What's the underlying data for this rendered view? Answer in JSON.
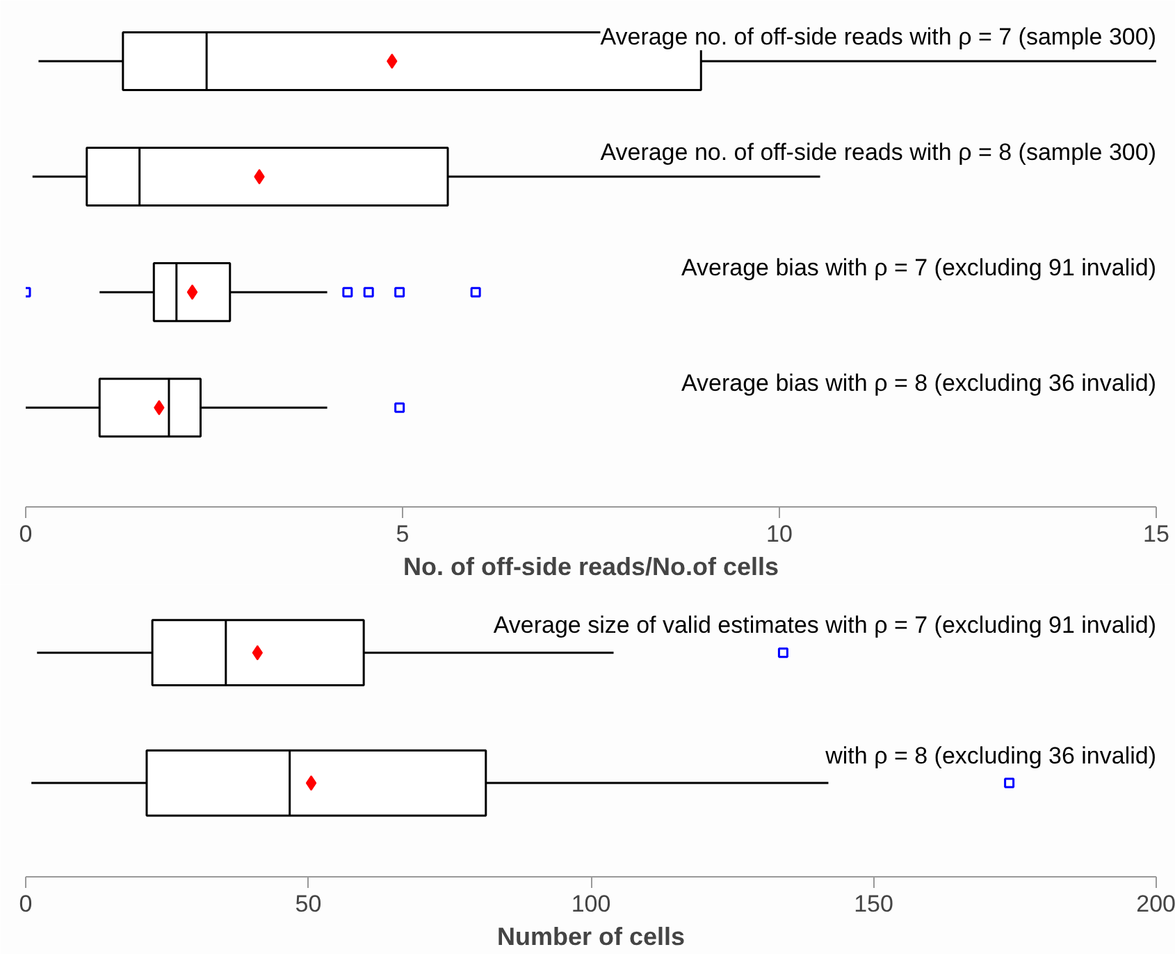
{
  "chart_data": [
    {
      "type": "box",
      "orientation": "horizontal",
      "categories": [
        "Average no. of off-side reads with ρ = 7 (sample 300)",
        "Average no. of off-side reads with ρ = 8 (sample 300)",
        "Average bias with ρ = 7 (excluding 91 invalid)",
        "Average bias with ρ = 8 (excluding 36 invalid)"
      ],
      "boxes": [
        {
          "low": 0.17,
          "q1": 1.29,
          "median": 2.4,
          "q3": 8.96,
          "high": 15,
          "mean": 4.86
        },
        {
          "low": 0.09,
          "q1": 0.81,
          "median": 1.51,
          "q3": 5.6,
          "high": 10.54,
          "mean": 3.1
        },
        {
          "low": 0.98,
          "q1": 1.7,
          "median": 2.0,
          "q3": 2.71,
          "high": 4.0,
          "mean": 2.21,
          "outliers": [
            0,
            4.27,
            4.55,
            4.96,
            5.97
          ]
        },
        {
          "low": 0,
          "q1": 0.98,
          "median": 1.9,
          "q3": 2.32,
          "high": 4.0,
          "mean": 1.77,
          "outliers": [
            4.96
          ]
        }
      ],
      "xlim": [
        0,
        15
      ],
      "xticks": [
        0,
        5,
        10,
        15
      ],
      "xlabel": "No. of off-side reads/No.of cells",
      "tick_labels": "x",
      "grid": false
    },
    {
      "type": "box",
      "orientation": "horizontal",
      "categories": [
        "Average size of valid estimates with ρ = 7 (excluding 91 invalid)",
        "with ρ = 8 (excluding 36 invalid)"
      ],
      "boxes": [
        {
          "low": 2,
          "q1": 22.4,
          "median": 35.4,
          "q3": 59.8,
          "high": 104,
          "mean": 41,
          "outliers": [
            134
          ]
        },
        {
          "low": 1,
          "q1": 21.4,
          "median": 46.7,
          "q3": 81.4,
          "high": 142,
          "mean": 50.5,
          "outliers": [
            174
          ]
        }
      ],
      "xlim": [
        0,
        200
      ],
      "xticks": [
        0,
        50,
        100,
        150,
        200
      ],
      "xlabel": "Number of cells",
      "tick_labels": "x",
      "grid": false
    }
  ]
}
